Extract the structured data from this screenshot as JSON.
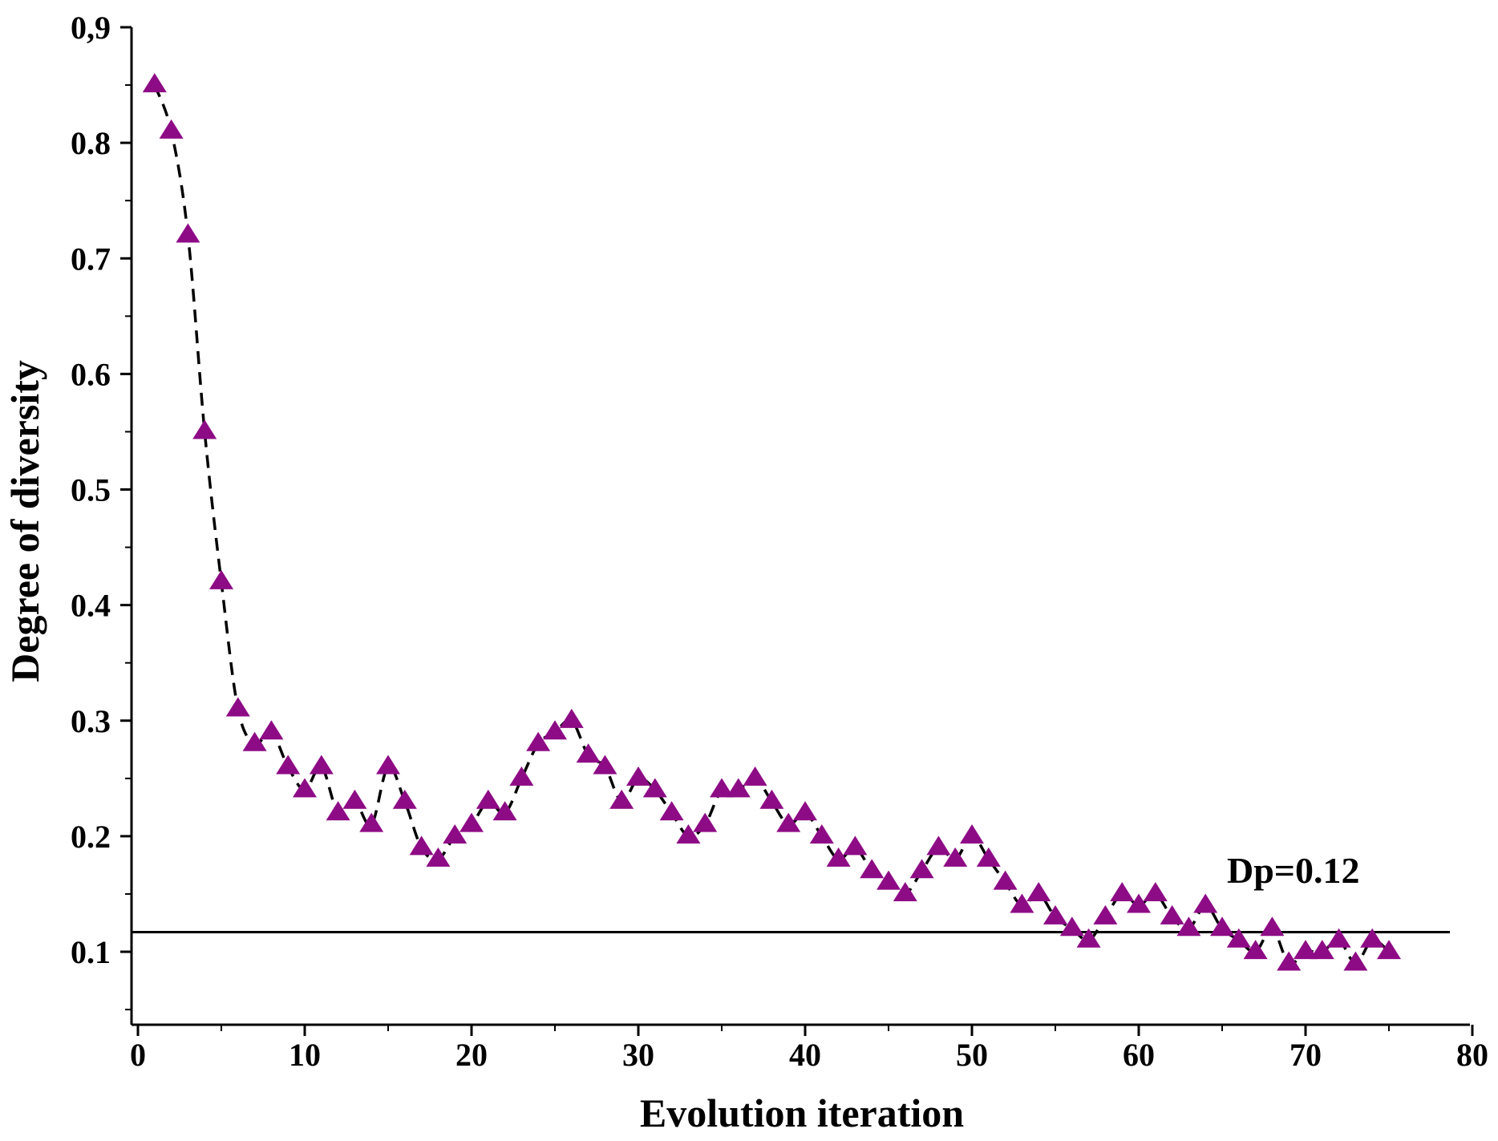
{
  "chart_data": {
    "type": "scatter",
    "title": "",
    "xlabel": "Evolution iteration",
    "ylabel": "Degree of diversity",
    "xlim": [
      0,
      80
    ],
    "ylim": [
      0.05,
      0.9
    ],
    "x_ticks": [
      {
        "value": 0,
        "label": "0"
      },
      {
        "value": 10,
        "label": "10"
      },
      {
        "value": 20,
        "label": "20"
      },
      {
        "value": 30,
        "label": "30"
      },
      {
        "value": 40,
        "label": "40"
      },
      {
        "value": 50,
        "label": "50"
      },
      {
        "value": 60,
        "label": "60"
      },
      {
        "value": 70,
        "label": "70"
      },
      {
        "value": 80,
        "label": "80"
      }
    ],
    "y_ticks": [
      {
        "value": 0.1,
        "label": "0.1"
      },
      {
        "value": 0.2,
        "label": "0.2"
      },
      {
        "value": 0.3,
        "label": "0.3"
      },
      {
        "value": 0.4,
        "label": "0.4"
      },
      {
        "value": 0.5,
        "label": "0.5"
      },
      {
        "value": 0.6,
        "label": "0.6"
      },
      {
        "value": 0.7,
        "label": "0.7"
      },
      {
        "value": 0.8,
        "label": "0.8"
      },
      {
        "value": 0.9,
        "label": "0,9"
      }
    ],
    "grid": false,
    "series": [
      {
        "name": "Degree of diversity",
        "marker": "triangle",
        "color": "#8e0b86",
        "line_style": "dashed",
        "line_color": "#000000",
        "x": [
          1,
          2,
          3,
          4,
          5,
          6,
          7,
          8,
          9,
          10,
          11,
          12,
          13,
          14,
          15,
          16,
          17,
          18,
          19,
          20,
          21,
          22,
          23,
          24,
          25,
          26,
          27,
          28,
          29,
          30,
          31,
          32,
          33,
          34,
          35,
          36,
          37,
          38,
          39,
          40,
          41,
          42,
          43,
          44,
          45,
          46,
          47,
          48,
          49,
          50,
          51,
          52,
          53,
          54,
          55,
          56,
          57,
          58,
          59,
          60,
          61,
          62,
          63,
          64,
          65,
          66,
          67,
          68,
          69,
          70,
          71,
          72,
          73,
          74,
          75
        ],
        "values": [
          0.85,
          0.81,
          0.72,
          0.55,
          0.42,
          0.31,
          0.28,
          0.29,
          0.26,
          0.24,
          0.26,
          0.22,
          0.23,
          0.21,
          0.26,
          0.23,
          0.19,
          0.18,
          0.2,
          0.21,
          0.23,
          0.22,
          0.25,
          0.28,
          0.29,
          0.3,
          0.27,
          0.26,
          0.23,
          0.25,
          0.24,
          0.22,
          0.2,
          0.21,
          0.24,
          0.24,
          0.25,
          0.23,
          0.21,
          0.22,
          0.2,
          0.18,
          0.19,
          0.17,
          0.16,
          0.15,
          0.17,
          0.19,
          0.18,
          0.2,
          0.18,
          0.16,
          0.14,
          0.15,
          0.13,
          0.12,
          0.11,
          0.13,
          0.15,
          0.14,
          0.15,
          0.13,
          0.12,
          0.14,
          0.12,
          0.11,
          0.1,
          0.12,
          0.09,
          0.1,
          0.1,
          0.11,
          0.09,
          0.11,
          0.1
        ]
      }
    ],
    "reference_line": {
      "value": 0.117,
      "label": "Dp=0.12",
      "color": "#000000"
    }
  }
}
